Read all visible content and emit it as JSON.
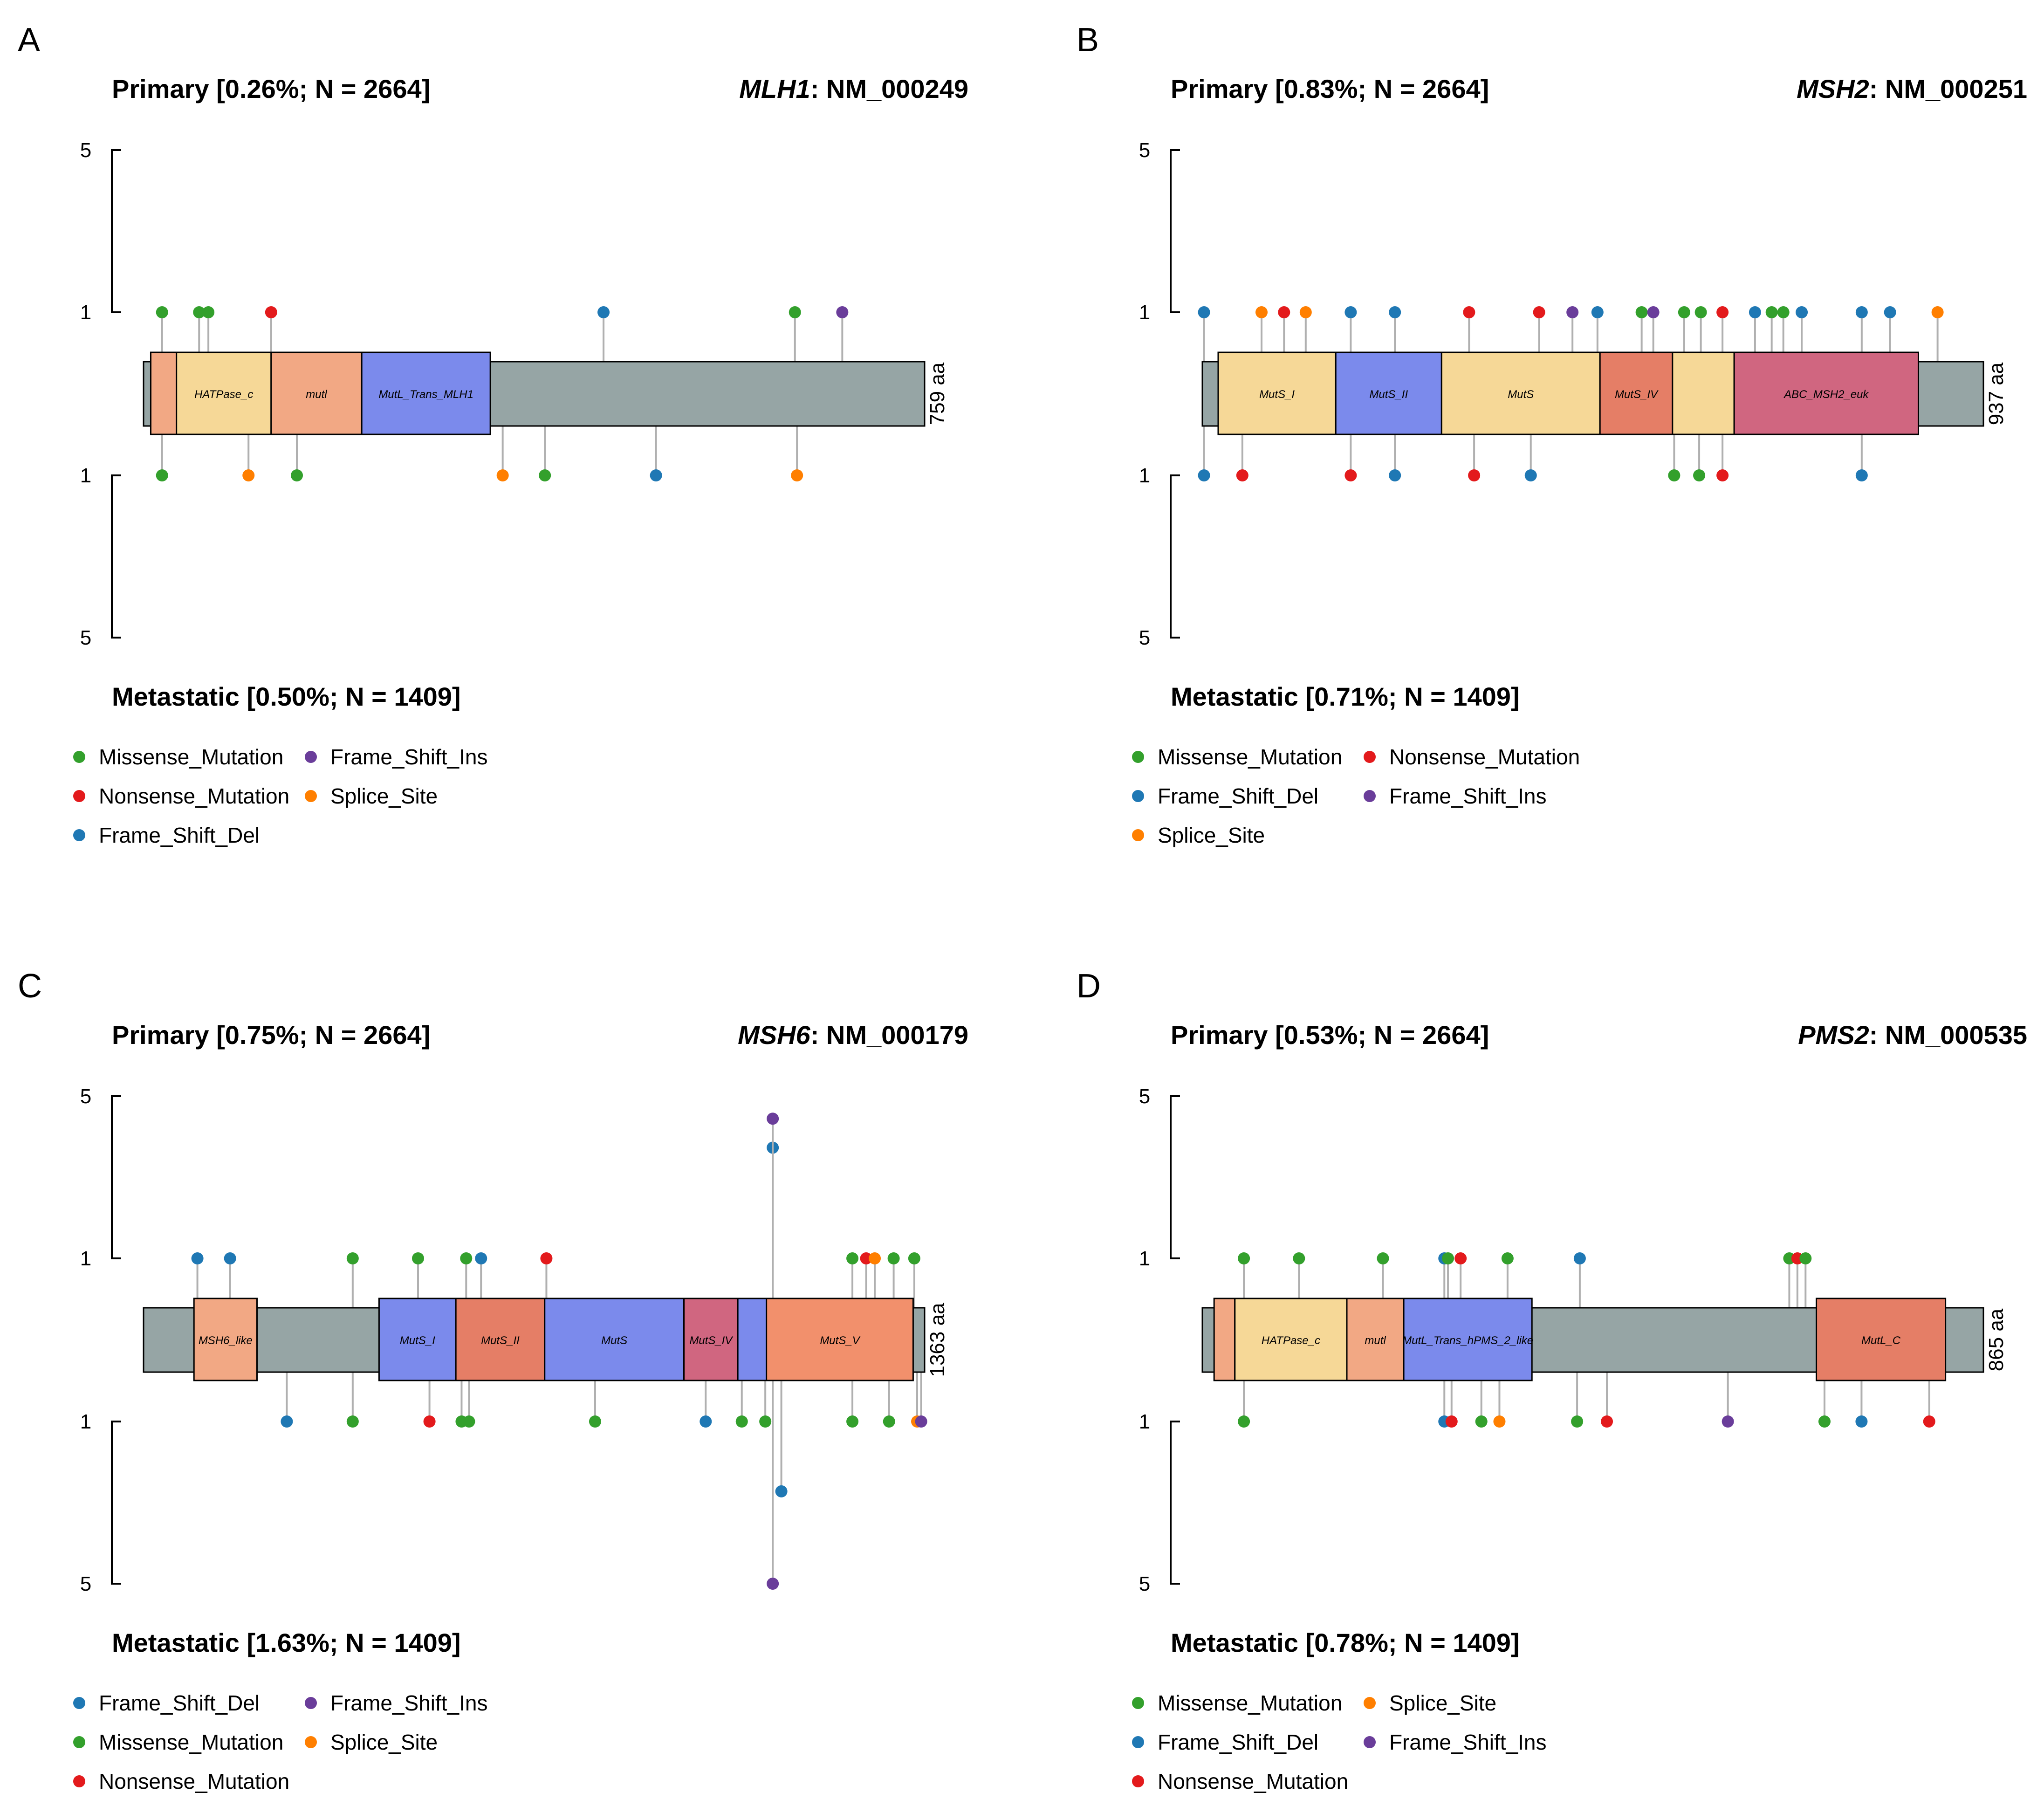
{
  "colors": {
    "Missense_Mutation": "#33a02c",
    "Nonsense_Mutation": "#e31a1c",
    "Frame_Shift_Del": "#1f78b4",
    "Frame_Shift_Ins": "#6a3d9a",
    "Splice_Site": "#ff7f00",
    "protein": "#96a5a5",
    "stem": "#b0b0b0",
    "HATPase_c": "#f6d897",
    "mutl": "#f2a884",
    "MutL_Trans": "#7b8aec",
    "MutS_I": "#f6d897",
    "MutS_II": "#7b8aec",
    "MutS": "#f6d897",
    "MutS_IV": "#e57e66",
    "ABC_MSH2_euk": "#d06680",
    "MSH6_like": "#f2a884",
    "MutS_V": "#f2906c",
    "MutL_C": "#e57e66",
    "pad": "#f2a884"
  },
  "chart_data": [
    {
      "type": "lollipop",
      "panel": "A",
      "primary_title": "Primary [0.26%; N = 2664]",
      "gene": "MLH1",
      "transcript": ": NM_000249",
      "metastatic_title": "Metastatic [0.50%; N = 1409]",
      "length_label": "759 aa",
      "length": 759,
      "y_ticks": [
        "5",
        "1",
        "1",
        "5"
      ],
      "domains": [
        {
          "label": "",
          "start": 7,
          "end": 32,
          "color": "pad"
        },
        {
          "label": "HATPase_c",
          "start": 32,
          "end": 124,
          "color": "HATPase_c"
        },
        {
          "label": "mutl",
          "start": 124,
          "end": 212,
          "color": "mutl"
        },
        {
          "label": "MutL_Trans_MLH1",
          "start": 212,
          "end": 337,
          "color": "MutL_Trans"
        }
      ],
      "primary": [
        {
          "pos": 18,
          "count": 1,
          "type": "Missense_Mutation"
        },
        {
          "pos": 54,
          "count": 1,
          "type": "Missense_Mutation"
        },
        {
          "pos": 63,
          "count": 1,
          "type": "Missense_Mutation"
        },
        {
          "pos": 124,
          "count": 1,
          "type": "Nonsense_Mutation"
        },
        {
          "pos": 447,
          "count": 1,
          "type": "Frame_Shift_Del"
        },
        {
          "pos": 633,
          "count": 1,
          "type": "Missense_Mutation"
        },
        {
          "pos": 679,
          "count": 1,
          "type": "Frame_Shift_Ins"
        }
      ],
      "metastatic": [
        {
          "pos": 18,
          "count": 1,
          "type": "Missense_Mutation"
        },
        {
          "pos": 102,
          "count": 1,
          "type": "Splice_Site"
        },
        {
          "pos": 149,
          "count": 1,
          "type": "Missense_Mutation"
        },
        {
          "pos": 349,
          "count": 1,
          "type": "Splice_Site"
        },
        {
          "pos": 390,
          "count": 1,
          "type": "Missense_Mutation"
        },
        {
          "pos": 498,
          "count": 1,
          "type": "Frame_Shift_Del"
        },
        {
          "pos": 635,
          "count": 1,
          "type": "Splice_Site"
        }
      ],
      "legend": [
        [
          {
            "label": "Missense_Mutation",
            "type": "Missense_Mutation"
          },
          {
            "label": "Frame_Shift_Ins",
            "type": "Frame_Shift_Ins"
          }
        ],
        [
          {
            "label": "Nonsense_Mutation",
            "type": "Nonsense_Mutation"
          },
          {
            "label": "Splice_Site",
            "type": "Splice_Site"
          }
        ],
        [
          {
            "label": "Frame_Shift_Del",
            "type": "Frame_Shift_Del"
          }
        ]
      ]
    },
    {
      "type": "lollipop",
      "panel": "B",
      "primary_title": "Primary [0.83%; N = 2664]",
      "gene": "MSH2",
      "transcript": ": NM_000251",
      "metastatic_title": "Metastatic [0.71%; N = 1409]",
      "length_label": "937 aa",
      "length": 937,
      "y_ticks": [
        "5",
        "1",
        "1",
        "5"
      ],
      "domains": [
        {
          "label": "MutS_I",
          "start": 19,
          "end": 160,
          "color": "MutS_I"
        },
        {
          "label": "MutS_II",
          "start": 160,
          "end": 287,
          "color": "MutS_II"
        },
        {
          "label": "MutS",
          "start": 287,
          "end": 477,
          "color": "MutS"
        },
        {
          "label": "MutS_IV",
          "start": 477,
          "end": 564,
          "color": "MutS_IV"
        },
        {
          "label": "",
          "start": 564,
          "end": 638,
          "color": "MutS"
        },
        {
          "label": "ABC_MSH2_euk",
          "start": 638,
          "end": 859,
          "color": "ABC_MSH2_euk"
        }
      ],
      "primary": [
        {
          "pos": 2,
          "count": 1,
          "type": "Frame_Shift_Del"
        },
        {
          "pos": 71,
          "count": 1,
          "type": "Splice_Site"
        },
        {
          "pos": 98,
          "count": 1,
          "type": "Nonsense_Mutation"
        },
        {
          "pos": 124,
          "count": 1,
          "type": "Splice_Site"
        },
        {
          "pos": 178,
          "count": 1,
          "type": "Frame_Shift_Del"
        },
        {
          "pos": 231,
          "count": 1,
          "type": "Frame_Shift_Del"
        },
        {
          "pos": 320,
          "count": 1,
          "type": "Nonsense_Mutation"
        },
        {
          "pos": 404,
          "count": 1,
          "type": "Nonsense_Mutation"
        },
        {
          "pos": 444,
          "count": 1,
          "type": "Frame_Shift_Ins"
        },
        {
          "pos": 474,
          "count": 1,
          "type": "Frame_Shift_Del"
        },
        {
          "pos": 527,
          "count": 1,
          "type": "Missense_Mutation"
        },
        {
          "pos": 541,
          "count": 1,
          "type": "Frame_Shift_Ins"
        },
        {
          "pos": 578,
          "count": 1,
          "type": "Missense_Mutation"
        },
        {
          "pos": 598,
          "count": 1,
          "type": "Missense_Mutation"
        },
        {
          "pos": 624,
          "count": 1,
          "type": "Nonsense_Mutation"
        },
        {
          "pos": 663,
          "count": 1,
          "type": "Frame_Shift_Del"
        },
        {
          "pos": 683,
          "count": 1,
          "type": "Missense_Mutation"
        },
        {
          "pos": 697,
          "count": 1,
          "type": "Missense_Mutation"
        },
        {
          "pos": 719,
          "count": 1,
          "type": "Frame_Shift_Del"
        },
        {
          "pos": 791,
          "count": 1,
          "type": "Frame_Shift_Del"
        },
        {
          "pos": 825,
          "count": 1,
          "type": "Frame_Shift_Del"
        },
        {
          "pos": 882,
          "count": 1,
          "type": "Splice_Site"
        }
      ],
      "metastatic": [
        {
          "pos": 2,
          "count": 1,
          "type": "Frame_Shift_Del"
        },
        {
          "pos": 48,
          "count": 1,
          "type": "Nonsense_Mutation"
        },
        {
          "pos": 178,
          "count": 1,
          "type": "Nonsense_Mutation"
        },
        {
          "pos": 231,
          "count": 1,
          "type": "Frame_Shift_Del"
        },
        {
          "pos": 326,
          "count": 1,
          "type": "Nonsense_Mutation"
        },
        {
          "pos": 394,
          "count": 1,
          "type": "Frame_Shift_Del"
        },
        {
          "pos": 566,
          "count": 1,
          "type": "Missense_Mutation"
        },
        {
          "pos": 596,
          "count": 1,
          "type": "Missense_Mutation"
        },
        {
          "pos": 624,
          "count": 1,
          "type": "Nonsense_Mutation"
        },
        {
          "pos": 791,
          "count": 1,
          "type": "Frame_Shift_Del"
        }
      ],
      "legend": [
        [
          {
            "label": "Missense_Mutation",
            "type": "Missense_Mutation"
          },
          {
            "label": "Nonsense_Mutation",
            "type": "Nonsense_Mutation"
          }
        ],
        [
          {
            "label": "Frame_Shift_Del",
            "type": "Frame_Shift_Del"
          },
          {
            "label": "Frame_Shift_Ins",
            "type": "Frame_Shift_Ins"
          }
        ],
        [
          {
            "label": "Splice_Site",
            "type": "Splice_Site"
          }
        ]
      ]
    },
    {
      "type": "lollipop",
      "panel": "C",
      "primary_title": "Primary [0.75%; N = 2664]",
      "gene": "MSH6",
      "transcript": ": NM_000179",
      "metastatic_title": "Metastatic [1.63%; N = 1409]",
      "length_label": "1363 aa",
      "length": 1363,
      "y_ticks": [
        "5",
        "1",
        "1",
        "5"
      ],
      "domains": [
        {
          "label": "MSH6_like",
          "start": 88,
          "end": 198,
          "color": "MSH6_like"
        },
        {
          "label": "MutS_I",
          "start": 411,
          "end": 545,
          "color": "MutS_II"
        },
        {
          "label": "MutS_II",
          "start": 545,
          "end": 700,
          "color": "MutS_IV"
        },
        {
          "label": "MutS",
          "start": 700,
          "end": 943,
          "color": "MutS_II"
        },
        {
          "label": "MutS_IV",
          "start": 943,
          "end": 1037,
          "color": "ABC_MSH2_euk"
        },
        {
          "label": "",
          "start": 1037,
          "end": 1087,
          "color": "MutS_II"
        },
        {
          "label": "MutS_V",
          "start": 1087,
          "end": 1343,
          "color": "MutS_V"
        }
      ],
      "primary": [
        {
          "pos": 94,
          "count": 1,
          "type": "Frame_Shift_Del"
        },
        {
          "pos": 151,
          "count": 1,
          "type": "Frame_Shift_Del"
        },
        {
          "pos": 365,
          "count": 1,
          "type": "Missense_Mutation"
        },
        {
          "pos": 479,
          "count": 1,
          "type": "Missense_Mutation"
        },
        {
          "pos": 563,
          "count": 1,
          "type": "Missense_Mutation"
        },
        {
          "pos": 589,
          "count": 1,
          "type": "Frame_Shift_Del"
        },
        {
          "pos": 703,
          "count": 1,
          "type": "Nonsense_Mutation"
        },
        {
          "pos": 1098,
          "count": 3,
          "type": "Frame_Shift_Del"
        },
        {
          "pos": 1098,
          "count": 4,
          "type": "Frame_Shift_Ins"
        },
        {
          "pos": 1237,
          "count": 1,
          "type": "Missense_Mutation"
        },
        {
          "pos": 1261,
          "count": 1,
          "type": "Nonsense_Mutation"
        },
        {
          "pos": 1276,
          "count": 1,
          "type": "Splice_Site"
        },
        {
          "pos": 1309,
          "count": 1,
          "type": "Missense_Mutation"
        },
        {
          "pos": 1345,
          "count": 1,
          "type": "Missense_Mutation"
        }
      ],
      "metastatic": [
        {
          "pos": 250,
          "count": 1,
          "type": "Frame_Shift_Del"
        },
        {
          "pos": 365,
          "count": 1,
          "type": "Missense_Mutation"
        },
        {
          "pos": 499,
          "count": 1,
          "type": "Nonsense_Mutation"
        },
        {
          "pos": 555,
          "count": 1,
          "type": "Missense_Mutation"
        },
        {
          "pos": 568,
          "count": 1,
          "type": "Missense_Mutation"
        },
        {
          "pos": 788,
          "count": 1,
          "type": "Missense_Mutation"
        },
        {
          "pos": 981,
          "count": 1,
          "type": "Frame_Shift_Del"
        },
        {
          "pos": 1044,
          "count": 1,
          "type": "Missense_Mutation"
        },
        {
          "pos": 1085,
          "count": 1,
          "type": "Missense_Mutation"
        },
        {
          "pos": 1098,
          "count": 5,
          "type": "Frame_Shift_Ins"
        },
        {
          "pos": 1113,
          "count": 2,
          "type": "Frame_Shift_Del"
        },
        {
          "pos": 1237,
          "count": 1,
          "type": "Missense_Mutation"
        },
        {
          "pos": 1301,
          "count": 1,
          "type": "Missense_Mutation"
        },
        {
          "pos": 1350,
          "count": 1,
          "type": "Splice_Site"
        },
        {
          "pos": 1357,
          "count": 1,
          "type": "Frame_Shift_Ins"
        }
      ],
      "legend": [
        [
          {
            "label": "Frame_Shift_Del",
            "type": "Frame_Shift_Del"
          },
          {
            "label": "Frame_Shift_Ins",
            "type": "Frame_Shift_Ins"
          }
        ],
        [
          {
            "label": "Missense_Mutation",
            "type": "Missense_Mutation"
          },
          {
            "label": "Splice_Site",
            "type": "Splice_Site"
          }
        ],
        [
          {
            "label": "Nonsense_Mutation",
            "type": "Nonsense_Mutation"
          }
        ]
      ]
    },
    {
      "type": "lollipop",
      "panel": "D",
      "primary_title": "Primary [0.53%; N = 2664]",
      "gene": "PMS2",
      "transcript": ": NM_000535",
      "metastatic_title": "Metastatic [0.78%; N = 1409]",
      "length_label": "865 aa",
      "length": 865,
      "y_ticks": [
        "5",
        "1",
        "1",
        "5"
      ],
      "domains": [
        {
          "label": "",
          "start": 13,
          "end": 36,
          "color": "pad"
        },
        {
          "label": "HATPase_c",
          "start": 36,
          "end": 160,
          "color": "HATPase_c"
        },
        {
          "label": "mutl",
          "start": 160,
          "end": 223,
          "color": "mutl"
        },
        {
          "label": "MutL_Trans_hPMS_2_like",
          "start": 223,
          "end": 365,
          "color": "MutL_Trans"
        },
        {
          "label": "MutL_C",
          "start": 680,
          "end": 823,
          "color": "MutL_C"
        }
      ],
      "primary": [
        {
          "pos": 46,
          "count": 1,
          "type": "Missense_Mutation"
        },
        {
          "pos": 107,
          "count": 1,
          "type": "Missense_Mutation"
        },
        {
          "pos": 200,
          "count": 1,
          "type": "Missense_Mutation"
        },
        {
          "pos": 268,
          "count": 1,
          "type": "Frame_Shift_Del"
        },
        {
          "pos": 272,
          "count": 1,
          "type": "Missense_Mutation"
        },
        {
          "pos": 286,
          "count": 1,
          "type": "Nonsense_Mutation"
        },
        {
          "pos": 338,
          "count": 1,
          "type": "Missense_Mutation"
        },
        {
          "pos": 418,
          "count": 1,
          "type": "Frame_Shift_Del"
        },
        {
          "pos": 650,
          "count": 1,
          "type": "Missense_Mutation"
        },
        {
          "pos": 659,
          "count": 1,
          "type": "Nonsense_Mutation"
        },
        {
          "pos": 668,
          "count": 1,
          "type": "Missense_Mutation"
        }
      ],
      "metastatic": [
        {
          "pos": 46,
          "count": 1,
          "type": "Missense_Mutation"
        },
        {
          "pos": 268,
          "count": 1,
          "type": "Frame_Shift_Del"
        },
        {
          "pos": 276,
          "count": 1,
          "type": "Nonsense_Mutation"
        },
        {
          "pos": 309,
          "count": 1,
          "type": "Missense_Mutation"
        },
        {
          "pos": 329,
          "count": 1,
          "type": "Splice_Site"
        },
        {
          "pos": 415,
          "count": 1,
          "type": "Missense_Mutation"
        },
        {
          "pos": 448,
          "count": 1,
          "type": "Nonsense_Mutation"
        },
        {
          "pos": 582,
          "count": 1,
          "type": "Frame_Shift_Ins"
        },
        {
          "pos": 689,
          "count": 1,
          "type": "Missense_Mutation"
        },
        {
          "pos": 730,
          "count": 1,
          "type": "Frame_Shift_Del"
        },
        {
          "pos": 805,
          "count": 1,
          "type": "Nonsense_Mutation"
        }
      ],
      "legend": [
        [
          {
            "label": "Missense_Mutation",
            "type": "Missense_Mutation"
          },
          {
            "label": "Splice_Site",
            "type": "Splice_Site"
          }
        ],
        [
          {
            "label": "Frame_Shift_Del",
            "type": "Frame_Shift_Del"
          },
          {
            "label": "Frame_Shift_Ins",
            "type": "Frame_Shift_Ins"
          }
        ],
        [
          {
            "label": "Nonsense_Mutation",
            "type": "Nonsense_Mutation"
          }
        ]
      ]
    }
  ]
}
